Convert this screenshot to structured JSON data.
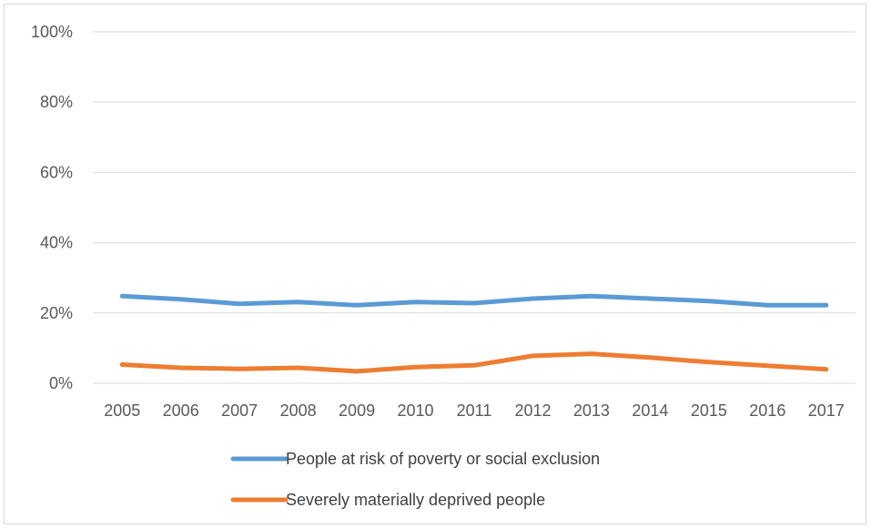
{
  "chart_data": {
    "type": "line",
    "title": "",
    "xlabel": "",
    "ylabel": "",
    "categories": [
      "2005",
      "2006",
      "2007",
      "2008",
      "2009",
      "2010",
      "2011",
      "2012",
      "2013",
      "2014",
      "2015",
      "2016",
      "2017"
    ],
    "ylim": [
      0,
      100
    ],
    "yticks": [
      "0%",
      "20%",
      "40%",
      "60%",
      "80%",
      "100%"
    ],
    "grid": true,
    "legend_position": "bottom",
    "series": [
      {
        "name": "People at risk of poverty or social exclusion",
        "color": "#5B9BD5",
        "values": [
          24.8,
          23.9,
          22.6,
          23.1,
          22.2,
          23.1,
          22.8,
          24.1,
          24.8,
          24.1,
          23.4,
          22.2,
          22.2
        ]
      },
      {
        "name": "Severely materially deprived people",
        "color": "#ED7D31",
        "values": [
          5.3,
          4.4,
          4.1,
          4.4,
          3.4,
          4.6,
          5.1,
          7.8,
          8.4,
          7.3,
          6.0,
          5.0,
          4.0
        ]
      }
    ]
  }
}
